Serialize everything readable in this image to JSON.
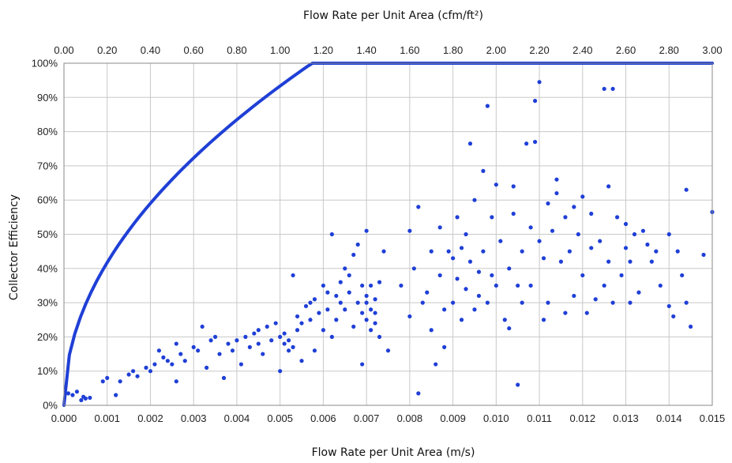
{
  "chart_data": {
    "type": "scatter",
    "title": "",
    "top_axis": {
      "label": "Flow Rate per Unit Area (cfm/ft²)",
      "ticks": [
        "0.00",
        "0.20",
        "0.40",
        "0.60",
        "0.80",
        "1.00",
        "1.20",
        "1.40",
        "1.60",
        "1.80",
        "2.00",
        "2.20",
        "2.40",
        "2.60",
        "2.80",
        "3.00"
      ],
      "xlim": [
        0,
        3.0
      ]
    },
    "xlabel": "Flow Rate per Unit Area (m/s)",
    "ylabel": "Collector Efficiency",
    "xlim": [
      0,
      0.015
    ],
    "ylim": [
      0,
      1.0
    ],
    "x_ticks": [
      "0.000",
      "0.001",
      "0.002",
      "0.003",
      "0.004",
      "0.005",
      "0.006",
      "0.007",
      "0.008",
      "0.009",
      "0.010",
      "0.011",
      "0.012",
      "0.013",
      "0.014",
      "0.015"
    ],
    "y_ticks": [
      "0%",
      "10%",
      "20%",
      "30%",
      "40%",
      "50%",
      "60%",
      "70%",
      "80%",
      "90%",
      "100%"
    ],
    "grid": true,
    "legend": "none",
    "colors": {
      "points": "#1f3fd6",
      "trend": "#1f3fd6",
      "grid": "#c8c8c8"
    },
    "trendline": {
      "type": "power",
      "a": 13.2,
      "b": 0.5,
      "note": "y = a * x^b"
    },
    "series": [
      {
        "points": [
          [
            0.0001,
            0.035
          ],
          [
            0.0002,
            0.03
          ],
          [
            0.0003,
            0.04
          ],
          [
            0.0004,
            0.015
          ],
          [
            0.00045,
            0.025
          ],
          [
            0.0005,
            0.02
          ],
          [
            0.0006,
            0.022
          ],
          [
            0.0009,
            0.07
          ],
          [
            0.001,
            0.08
          ],
          [
            0.0012,
            0.03
          ],
          [
            0.0013,
            0.07
          ],
          [
            0.0015,
            0.09
          ],
          [
            0.0016,
            0.1
          ],
          [
            0.0017,
            0.085
          ],
          [
            0.0019,
            0.11
          ],
          [
            0.002,
            0.1
          ],
          [
            0.0021,
            0.12
          ],
          [
            0.0022,
            0.16
          ],
          [
            0.0023,
            0.14
          ],
          [
            0.0024,
            0.13
          ],
          [
            0.0025,
            0.12
          ],
          [
            0.0026,
            0.18
          ],
          [
            0.0026,
            0.07
          ],
          [
            0.0027,
            0.15
          ],
          [
            0.0028,
            0.13
          ],
          [
            0.003,
            0.17
          ],
          [
            0.0031,
            0.16
          ],
          [
            0.0032,
            0.23
          ],
          [
            0.0033,
            0.11
          ],
          [
            0.0034,
            0.19
          ],
          [
            0.0035,
            0.2
          ],
          [
            0.0036,
            0.15
          ],
          [
            0.0037,
            0.08
          ],
          [
            0.0038,
            0.18
          ],
          [
            0.0039,
            0.16
          ],
          [
            0.004,
            0.19
          ],
          [
            0.0041,
            0.12
          ],
          [
            0.0042,
            0.2
          ],
          [
            0.0043,
            0.17
          ],
          [
            0.0044,
            0.21
          ],
          [
            0.0045,
            0.22
          ],
          [
            0.0045,
            0.18
          ],
          [
            0.0046,
            0.15
          ],
          [
            0.0047,
            0.23
          ],
          [
            0.0048,
            0.19
          ],
          [
            0.0049,
            0.24
          ],
          [
            0.005,
            0.1
          ],
          [
            0.005,
            0.2
          ],
          [
            0.0051,
            0.18
          ],
          [
            0.0051,
            0.21
          ],
          [
            0.0052,
            0.19
          ],
          [
            0.0052,
            0.16
          ],
          [
            0.0053,
            0.17
          ],
          [
            0.0053,
            0.38
          ],
          [
            0.0054,
            0.22
          ],
          [
            0.0054,
            0.26
          ],
          [
            0.0055,
            0.13
          ],
          [
            0.0055,
            0.24
          ],
          [
            0.0056,
            0.29
          ],
          [
            0.0057,
            0.3
          ],
          [
            0.0057,
            0.25
          ],
          [
            0.0058,
            0.16
          ],
          [
            0.0058,
            0.31
          ],
          [
            0.0059,
            0.27
          ],
          [
            0.006,
            0.35
          ],
          [
            0.006,
            0.22
          ],
          [
            0.0061,
            0.33
          ],
          [
            0.0061,
            0.28
          ],
          [
            0.0062,
            0.5
          ],
          [
            0.0062,
            0.2
          ],
          [
            0.0063,
            0.32
          ],
          [
            0.0063,
            0.25
          ],
          [
            0.0064,
            0.36
          ],
          [
            0.0064,
            0.3
          ],
          [
            0.0065,
            0.4
          ],
          [
            0.0065,
            0.28
          ],
          [
            0.0066,
            0.38
          ],
          [
            0.0066,
            0.33
          ],
          [
            0.0067,
            0.44
          ],
          [
            0.0067,
            0.23
          ],
          [
            0.0068,
            0.47
          ],
          [
            0.0068,
            0.3
          ],
          [
            0.0069,
            0.35
          ],
          [
            0.0069,
            0.27
          ],
          [
            0.007,
            0.51
          ],
          [
            0.007,
            0.25
          ],
          [
            0.007,
            0.3
          ],
          [
            0.007,
            0.32
          ],
          [
            0.0071,
            0.28
          ],
          [
            0.0071,
            0.22
          ],
          [
            0.0071,
            0.35
          ],
          [
            0.0072,
            0.27
          ],
          [
            0.0072,
            0.31
          ],
          [
            0.0072,
            0.24
          ],
          [
            0.0073,
            0.36
          ],
          [
            0.0073,
            0.2
          ],
          [
            0.0074,
            0.45
          ],
          [
            0.0069,
            0.12
          ],
          [
            0.0075,
            0.16
          ],
          [
            0.0078,
            0.35
          ],
          [
            0.008,
            0.26
          ],
          [
            0.008,
            0.51
          ],
          [
            0.0081,
            0.4
          ],
          [
            0.0082,
            0.035
          ],
          [
            0.0082,
            0.58
          ],
          [
            0.0083,
            0.3
          ],
          [
            0.0084,
            0.33
          ],
          [
            0.0085,
            0.45
          ],
          [
            0.0085,
            0.22
          ],
          [
            0.0086,
            0.12
          ],
          [
            0.0087,
            0.52
          ],
          [
            0.0087,
            0.38
          ],
          [
            0.0088,
            0.17
          ],
          [
            0.0088,
            0.28
          ],
          [
            0.0089,
            0.45
          ],
          [
            0.009,
            0.43
          ],
          [
            0.009,
            0.3
          ],
          [
            0.0091,
            0.55
          ],
          [
            0.0091,
            0.37
          ],
          [
            0.0092,
            0.46
          ],
          [
            0.0092,
            0.25
          ],
          [
            0.0093,
            0.5
          ],
          [
            0.0093,
            0.34
          ],
          [
            0.0094,
            0.765
          ],
          [
            0.0094,
            0.42
          ],
          [
            0.0095,
            0.28
          ],
          [
            0.0095,
            0.6
          ],
          [
            0.0096,
            0.39
          ],
          [
            0.0096,
            0.32
          ],
          [
            0.0097,
            0.685
          ],
          [
            0.0097,
            0.45
          ],
          [
            0.0098,
            0.875
          ],
          [
            0.0098,
            0.3
          ],
          [
            0.0099,
            0.55
          ],
          [
            0.0099,
            0.38
          ],
          [
            0.01,
            0.645
          ],
          [
            0.01,
            0.35
          ],
          [
            0.0101,
            0.48
          ],
          [
            0.0102,
            0.25
          ],
          [
            0.0103,
            0.4
          ],
          [
            0.0103,
            0.225
          ],
          [
            0.0104,
            0.56
          ],
          [
            0.0104,
            0.64
          ],
          [
            0.0105,
            0.06
          ],
          [
            0.0105,
            0.35
          ],
          [
            0.0106,
            0.3
          ],
          [
            0.0106,
            0.45
          ],
          [
            0.0107,
            0.765
          ],
          [
            0.0108,
            0.52
          ],
          [
            0.0108,
            0.35
          ],
          [
            0.0109,
            0.89
          ],
          [
            0.0109,
            0.77
          ],
          [
            0.011,
            0.945
          ],
          [
            0.011,
            0.48
          ],
          [
            0.0111,
            0.43
          ],
          [
            0.0111,
            0.25
          ],
          [
            0.0112,
            0.59
          ],
          [
            0.0112,
            0.3
          ],
          [
            0.0113,
            0.51
          ],
          [
            0.0114,
            0.62
          ],
          [
            0.0114,
            0.66
          ],
          [
            0.0115,
            0.42
          ],
          [
            0.0116,
            0.55
          ],
          [
            0.0116,
            0.27
          ],
          [
            0.0117,
            0.45
          ],
          [
            0.0118,
            0.58
          ],
          [
            0.0118,
            0.32
          ],
          [
            0.0119,
            0.5
          ],
          [
            0.012,
            0.61
          ],
          [
            0.012,
            0.38
          ],
          [
            0.0121,
            0.27
          ],
          [
            0.0122,
            0.46
          ],
          [
            0.0122,
            0.56
          ],
          [
            0.0123,
            0.31
          ],
          [
            0.0124,
            0.48
          ],
          [
            0.0125,
            0.35
          ],
          [
            0.0125,
            0.925
          ],
          [
            0.0126,
            0.64
          ],
          [
            0.0126,
            0.42
          ],
          [
            0.0127,
            0.925
          ],
          [
            0.0127,
            0.3
          ],
          [
            0.0128,
            0.55
          ],
          [
            0.0129,
            0.38
          ],
          [
            0.013,
            0.46
          ],
          [
            0.013,
            0.53
          ],
          [
            0.0131,
            0.3
          ],
          [
            0.0131,
            0.42
          ],
          [
            0.0132,
            0.5
          ],
          [
            0.0133,
            0.33
          ],
          [
            0.0134,
            0.51
          ],
          [
            0.0135,
            0.47
          ],
          [
            0.0136,
            0.42
          ],
          [
            0.0137,
            0.45
          ],
          [
            0.0138,
            0.35
          ],
          [
            0.014,
            0.5
          ],
          [
            0.014,
            0.29
          ],
          [
            0.0141,
            0.26
          ],
          [
            0.0142,
            0.45
          ],
          [
            0.0143,
            0.38
          ],
          [
            0.0144,
            0.63
          ],
          [
            0.0144,
            0.3
          ],
          [
            0.0145,
            0.23
          ],
          [
            0.0148,
            0.44
          ],
          [
            0.015,
            0.565
          ]
        ]
      }
    ]
  }
}
